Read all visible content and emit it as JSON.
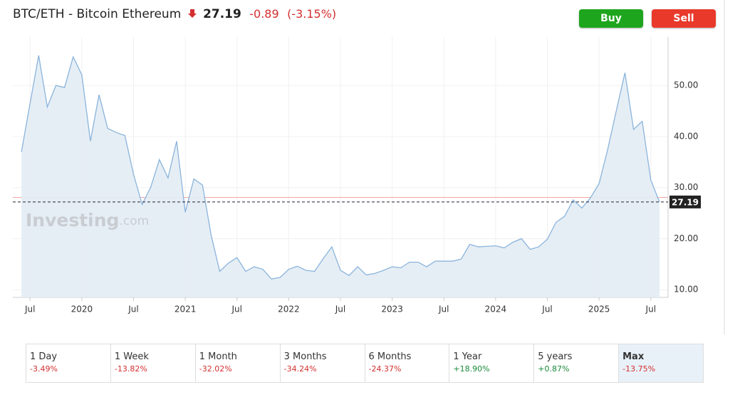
{
  "header": {
    "title": "BTC/ETH - Bitcoin Ethereum",
    "price": "27.19",
    "change": "-0.89",
    "change_percent": "(-3.15%)"
  },
  "buttons": {
    "buy": "Buy",
    "sell": "Sell"
  },
  "watermark": {
    "brand": "Investing",
    "suffix": ".com"
  },
  "chart_data": {
    "type": "area",
    "x": [
      "2019-06",
      "2019-07",
      "2019-08",
      "2019-09",
      "2019-10",
      "2019-11",
      "2019-12",
      "2020-01",
      "2020-02",
      "2020-03",
      "2020-04",
      "2020-05",
      "2020-06",
      "2020-07",
      "2020-08",
      "2020-09",
      "2020-10",
      "2020-11",
      "2020-12",
      "2021-01",
      "2021-02",
      "2021-03",
      "2021-04",
      "2021-05",
      "2021-06",
      "2021-07",
      "2021-08",
      "2021-09",
      "2021-10",
      "2021-11",
      "2021-12",
      "2022-01",
      "2022-02",
      "2022-03",
      "2022-04",
      "2022-05",
      "2022-06",
      "2022-07",
      "2022-08",
      "2022-09",
      "2022-10",
      "2022-11",
      "2022-12",
      "2023-01",
      "2023-02",
      "2023-03",
      "2023-04",
      "2023-05",
      "2023-06",
      "2023-07",
      "2023-08",
      "2023-09",
      "2023-10",
      "2023-11",
      "2023-12",
      "2024-01",
      "2024-02",
      "2024-03",
      "2024-04",
      "2024-05",
      "2024-06",
      "2024-07",
      "2024-08",
      "2024-09",
      "2024-10",
      "2024-11",
      "2024-12",
      "2025-01",
      "2025-02",
      "2025-03",
      "2025-04",
      "2025-05",
      "2025-06",
      "2025-07",
      "2025-08"
    ],
    "series": [
      {
        "name": "BTC/ETH",
        "color": "#8ab4dc",
        "values": [
          37,
          46.5,
          55.9,
          45.8,
          50,
          49.6,
          55.6,
          52.1,
          39.1,
          48.2,
          41.6,
          40.8,
          40.2,
          32.6,
          26.7,
          30.1,
          35.5,
          31.9,
          39.1,
          25.2,
          31.7,
          30.5,
          20.7,
          13.6,
          15.2,
          16.3,
          13.6,
          14.5,
          14,
          12.1,
          12.4,
          14,
          14.6,
          13.8,
          13.6,
          16.1,
          18.4,
          13.8,
          12.8,
          14.5,
          12.9,
          13.2,
          13.8,
          14.5,
          14.3,
          15.4,
          15.4,
          14.5,
          15.6,
          15.6,
          15.6,
          16,
          18.9,
          18.4,
          18.5,
          18.6,
          18.2,
          19.3,
          20,
          17.9,
          18.4,
          19.9,
          23.2,
          24.4,
          27.6,
          26,
          28,
          30.8,
          37.5,
          45.1,
          52.5,
          41.4,
          43,
          31.5,
          27.19
        ]
      }
    ],
    "previous_close": 28.08,
    "xlim": [
      "2019-05",
      "2025-09"
    ],
    "xticks": [
      {
        "value": "2019-07",
        "label": "Jul"
      },
      {
        "value": "2020-01",
        "label": "2020"
      },
      {
        "value": "2020-07",
        "label": "Jul"
      },
      {
        "value": "2021-01",
        "label": "2021"
      },
      {
        "value": "2021-07",
        "label": "Jul"
      },
      {
        "value": "2022-01",
        "label": "2022"
      },
      {
        "value": "2022-07",
        "label": "Jul"
      },
      {
        "value": "2023-01",
        "label": "2023"
      },
      {
        "value": "2023-07",
        "label": "Jul"
      },
      {
        "value": "2024-01",
        "label": "2024"
      },
      {
        "value": "2024-07",
        "label": "Jul"
      },
      {
        "value": "2025-01",
        "label": "2025"
      },
      {
        "value": "2025-07",
        "label": "Jul"
      }
    ],
    "ylim": [
      8.5,
      59.5
    ],
    "yticks": [
      {
        "value": 10,
        "label": "10.00"
      },
      {
        "value": 20,
        "label": "20.00"
      },
      {
        "value": 30,
        "label": "30.00"
      },
      {
        "value": 40,
        "label": "40.00"
      },
      {
        "value": 50,
        "label": "50.00"
      }
    ],
    "grid": true
  },
  "periods": [
    {
      "label": "1 Day",
      "change": "-3.49%"
    },
    {
      "label": "1 Week",
      "change": "-13.82%"
    },
    {
      "label": "1 Month",
      "change": "-32.02%"
    },
    {
      "label": "3 Months",
      "change": "-34.24%"
    },
    {
      "label": "6 Months",
      "change": "-24.37%"
    },
    {
      "label": "1 Year",
      "change": "+18.90%"
    },
    {
      "label": "5 years",
      "change": "+0.87%"
    },
    {
      "label": "Max",
      "change": "-13.75%",
      "active": true
    }
  ]
}
